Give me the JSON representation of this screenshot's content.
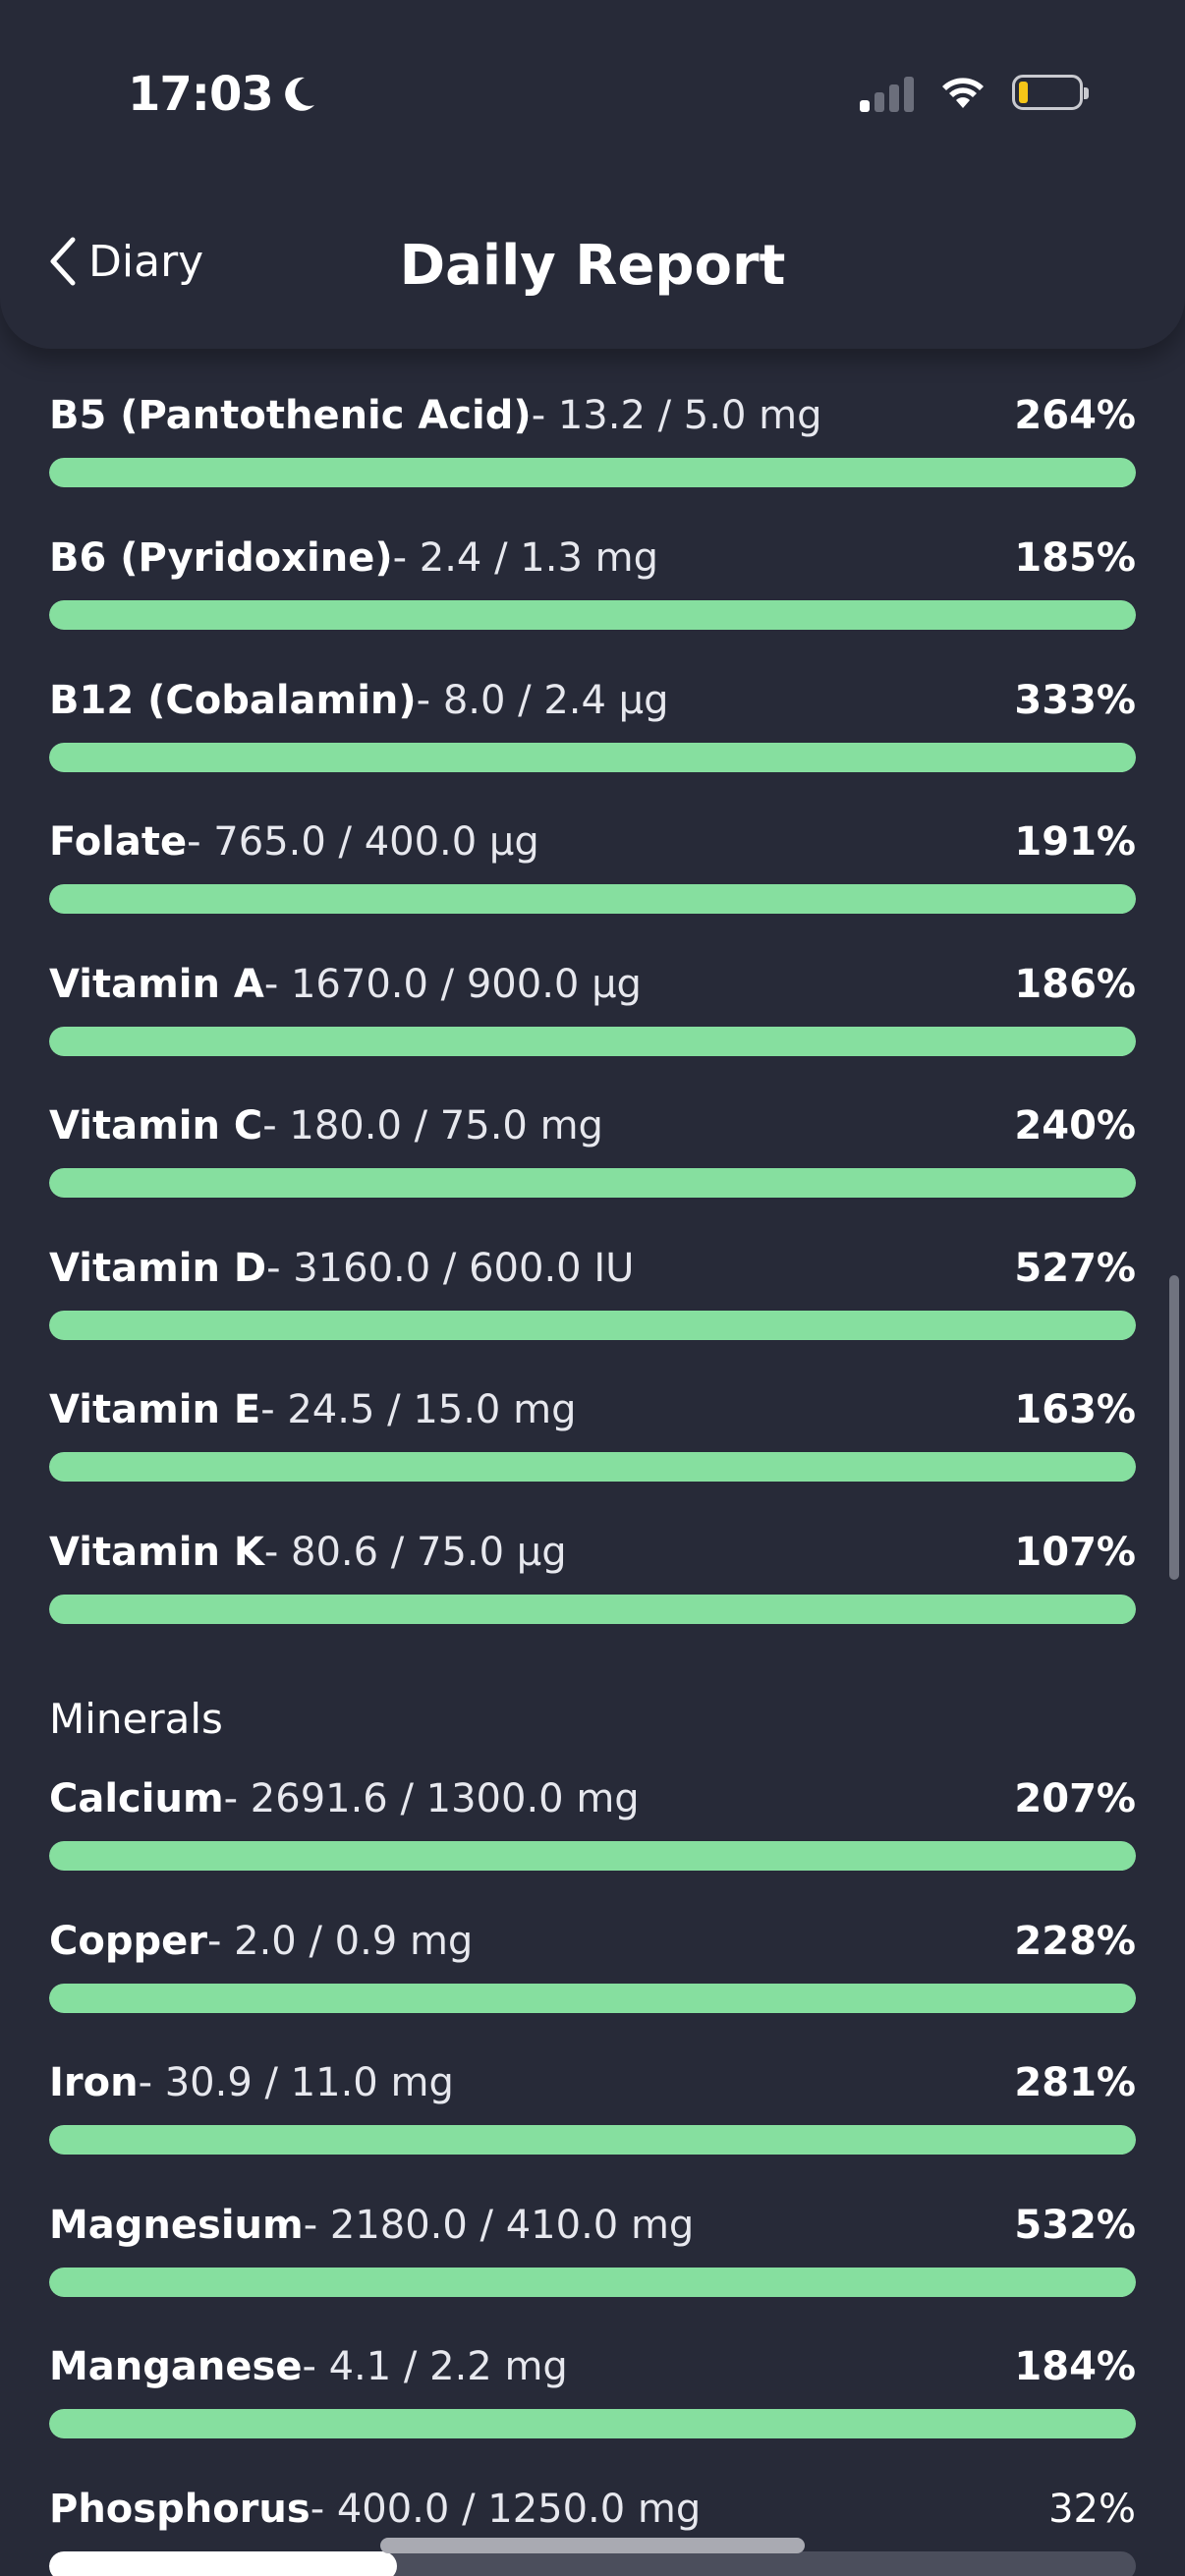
{
  "status_bar": {
    "time": "17:03",
    "moon_icon": "moon-icon",
    "signal_icon": "cellular-signal-icon",
    "wifi_icon": "wifi-icon",
    "battery_icon": "battery-icon"
  },
  "nav": {
    "back_label": "Diary",
    "title": "Daily Report"
  },
  "colors": {
    "background": "#272a38",
    "bar_fill": "#86df9f",
    "bar_track": "#4b4e5c",
    "bar_fill_low": "#ffffff"
  },
  "vitamins": [
    {
      "name": "B5 (Pantothenic Acid)",
      "amount": "- 13.2 / 5.0 mg",
      "percent": "264%",
      "fill_fraction": 1.0
    },
    {
      "name": "B6 (Pyridoxine)",
      "amount": "- 2.4 / 1.3 mg",
      "percent": "185%",
      "fill_fraction": 1.0
    },
    {
      "name": "B12 (Cobalamin)",
      "amount": "- 8.0 / 2.4 μg",
      "percent": "333%",
      "fill_fraction": 1.0
    },
    {
      "name": "Folate",
      "amount": "- 765.0 / 400.0 μg",
      "percent": "191%",
      "fill_fraction": 1.0
    },
    {
      "name": "Vitamin A",
      "amount": "- 1670.0 / 900.0 μg",
      "percent": "186%",
      "fill_fraction": 1.0
    },
    {
      "name": "Vitamin C",
      "amount": "- 180.0 / 75.0 mg",
      "percent": "240%",
      "fill_fraction": 1.0
    },
    {
      "name": "Vitamin D",
      "amount": "- 3160.0 / 600.0 IU",
      "percent": "527%",
      "fill_fraction": 1.0
    },
    {
      "name": "Vitamin E",
      "amount": "- 24.5 / 15.0 mg",
      "percent": "163%",
      "fill_fraction": 1.0
    },
    {
      "name": "Vitamin K",
      "amount": "- 80.6 / 75.0 μg",
      "percent": "107%",
      "fill_fraction": 1.0
    }
  ],
  "minerals_section": {
    "title": "Minerals"
  },
  "minerals": [
    {
      "name": "Calcium",
      "amount": "- 2691.6 / 1300.0 mg",
      "percent": "207%",
      "fill_fraction": 1.0
    },
    {
      "name": "Copper",
      "amount": "- 2.0 / 0.9 mg",
      "percent": "228%",
      "fill_fraction": 1.0
    },
    {
      "name": "Iron",
      "amount": "- 30.9 / 11.0 mg",
      "percent": "281%",
      "fill_fraction": 1.0
    },
    {
      "name": "Magnesium",
      "amount": "- 2180.0 / 410.0 mg",
      "percent": "532%",
      "fill_fraction": 1.0
    },
    {
      "name": "Manganese",
      "amount": "- 4.1 / 2.2 mg",
      "percent": "184%",
      "fill_fraction": 1.0
    },
    {
      "name": "Phosphorus",
      "amount": "- 400.0 / 1250.0 mg",
      "percent": "32%",
      "fill_fraction": 0.32
    }
  ]
}
